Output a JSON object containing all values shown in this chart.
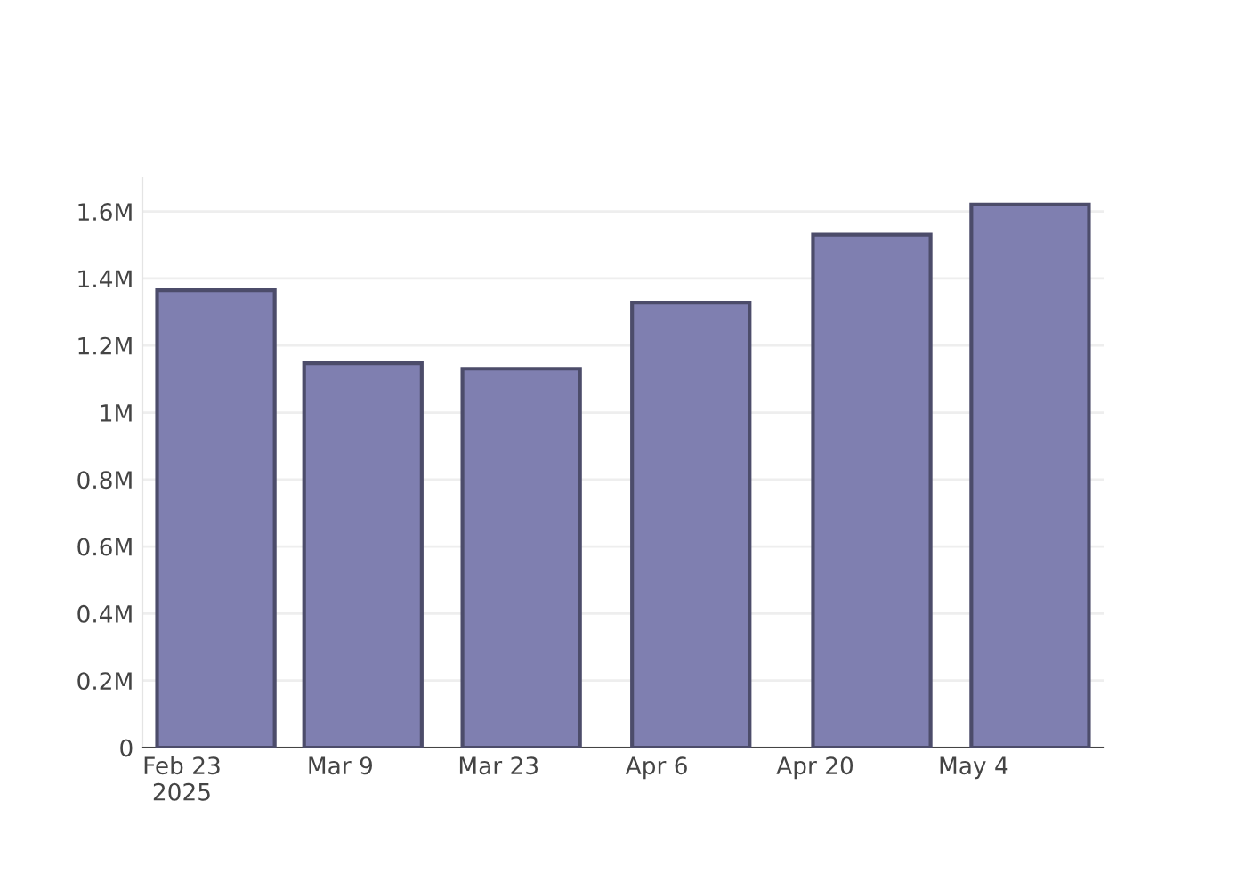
{
  "chart_data": {
    "type": "bar",
    "x": [
      "2025-02-26",
      "2025-03-11",
      "2025-03-25",
      "2025-04-09",
      "2025-04-25",
      "2025-05-09"
    ],
    "series": [
      {
        "color": "#7f7fb0",
        "values": [
          1365000,
          1147000,
          1131000,
          1328000,
          1531000,
          1621000
        ]
      }
    ],
    "xlim": [
      "2025-02-19T12:00",
      "2025-05-15T12:00"
    ],
    "xticks": [
      {
        "value": "2025-02-23",
        "label": "Feb 23\n2025"
      },
      {
        "value": "2025-03-09",
        "label": "Mar 9"
      },
      {
        "value": "2025-03-23",
        "label": "Mar 23"
      },
      {
        "value": "2025-04-06",
        "label": "Apr 6"
      },
      {
        "value": "2025-04-20",
        "label": "Apr 20"
      },
      {
        "value": "2025-05-04",
        "label": "May 4"
      }
    ],
    "ylim": [
      0,
      1700000
    ],
    "yticks": [
      0,
      {
        "value": 200000,
        "label": "0.2M"
      },
      {
        "value": 400000,
        "label": "0.4M"
      },
      {
        "value": 600000,
        "label": "0.6M"
      },
      {
        "value": 800000,
        "label": "0.8M"
      },
      {
        "value": 1000000,
        "label": "1M"
      },
      {
        "value": 1200000,
        "label": "1.2M"
      },
      {
        "value": 1400000,
        "label": "1.4M"
      },
      {
        "value": 1600000,
        "label": "1.6M"
      }
    ],
    "grid": "y"
  }
}
